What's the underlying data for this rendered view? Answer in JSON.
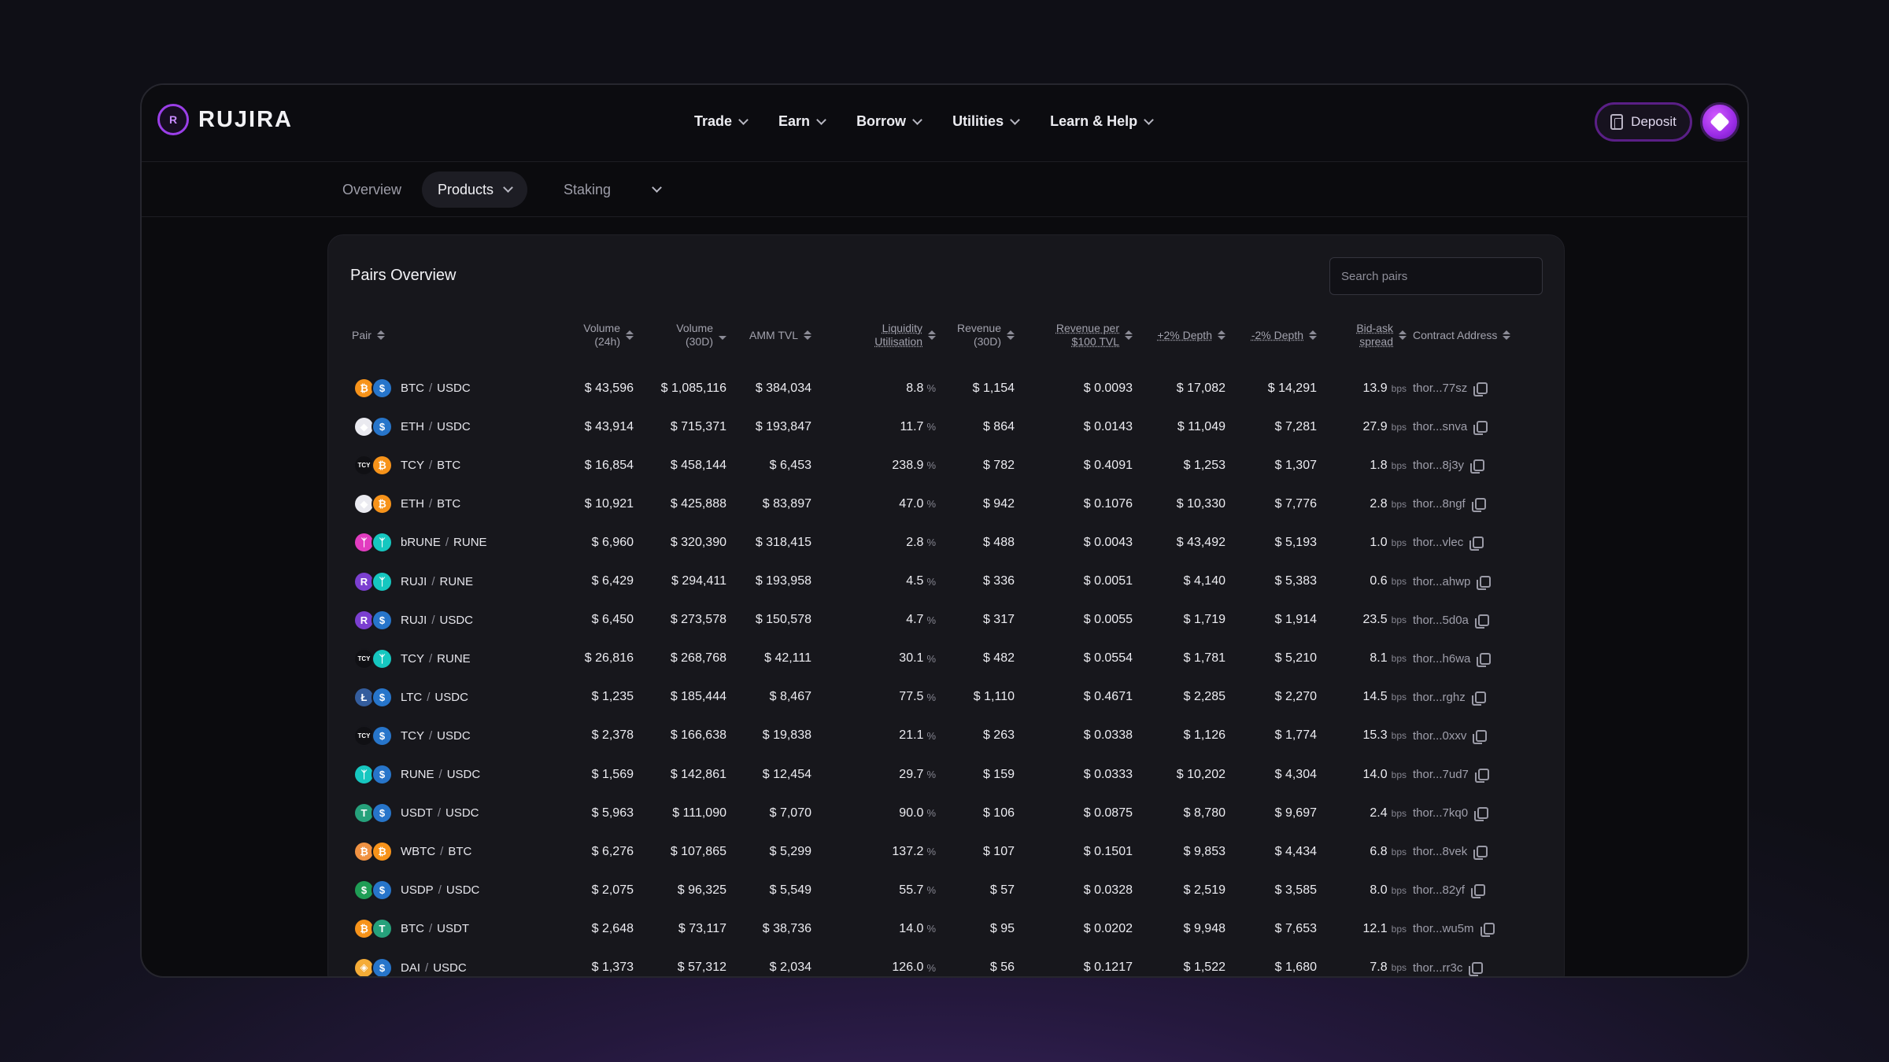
{
  "brand": {
    "name": "RUJIRA",
    "mark": "R"
  },
  "nav": [
    {
      "label": "Trade"
    },
    {
      "label": "Earn"
    },
    {
      "label": "Borrow"
    },
    {
      "label": "Utilities"
    },
    {
      "label": "Learn & Help"
    }
  ],
  "actions": {
    "deposit_label": "Deposit"
  },
  "subnav": {
    "overview": "Overview",
    "products": "Products",
    "staking": "Staking"
  },
  "panel": {
    "title": "Pairs Overview",
    "search_placeholder": "Search pairs"
  },
  "columns": {
    "pair": "Pair",
    "volume_24h": "Volume (24h)",
    "volume_30d": "Volume (30D)",
    "amm_tvl": "AMM TVL",
    "liquidity": "Liquidity Utilisation",
    "revenue": "Revenue (30D)",
    "revenue_per_100": "Revenue per $100 TVL",
    "depth_plus": "+2% Depth",
    "depth_minus": "-2% Depth",
    "spread": "Bid-ask spread",
    "contract": "Contract Address"
  },
  "units": {
    "pct": "%",
    "bps": "bps"
  },
  "coin_styles": {
    "BTC": {
      "color": "#f7931a",
      "glyph": "₿"
    },
    "USDC": {
      "color": "#2775ca",
      "glyph": "$"
    },
    "ETH": {
      "color": "#eaeaf0",
      "glyph": "◆"
    },
    "TCY": {
      "color": "#101014",
      "glyph": "TCY"
    },
    "bRUNE": {
      "color": "#e23cc0",
      "glyph": "ᛉ"
    },
    "RUNE": {
      "color": "#16c7c0",
      "glyph": "ᛉ"
    },
    "RUJI": {
      "color": "#7b3fd0",
      "glyph": "R"
    },
    "LTC": {
      "color": "#345d9d",
      "glyph": "Ł"
    },
    "USDT": {
      "color": "#26a17b",
      "glyph": "T"
    },
    "WBTC": {
      "color": "#f09242",
      "glyph": "₿"
    },
    "USDP": {
      "color": "#1f9d55",
      "glyph": "$"
    },
    "DAI": {
      "color": "#f5ac37",
      "glyph": "◈"
    }
  },
  "rows": [
    {
      "base": "BTC",
      "quote": "USDC",
      "vol24": "$ 43,596",
      "vol30": "$ 1,085,116",
      "tvl": "$ 384,034",
      "util": "8.8",
      "rev": "$ 1,154",
      "rev100": "$ 0.0093",
      "dplus": "$ 17,082",
      "dminus": "$ 14,291",
      "spread": "13.9",
      "addr": "thor...77sz"
    },
    {
      "base": "ETH",
      "quote": "USDC",
      "vol24": "$ 43,914",
      "vol30": "$ 715,371",
      "tvl": "$ 193,847",
      "util": "11.7",
      "rev": "$ 864",
      "rev100": "$ 0.0143",
      "dplus": "$ 11,049",
      "dminus": "$ 7,281",
      "spread": "27.9",
      "addr": "thor...snva"
    },
    {
      "base": "TCY",
      "quote": "BTC",
      "vol24": "$ 16,854",
      "vol30": "$ 458,144",
      "tvl": "$ 6,453",
      "util": "238.9",
      "rev": "$ 782",
      "rev100": "$ 0.4091",
      "dplus": "$ 1,253",
      "dminus": "$ 1,307",
      "spread": "1.8",
      "addr": "thor...8j3y"
    },
    {
      "base": "ETH",
      "quote": "BTC",
      "vol24": "$ 10,921",
      "vol30": "$ 425,888",
      "tvl": "$ 83,897",
      "util": "47.0",
      "rev": "$ 942",
      "rev100": "$ 0.1076",
      "dplus": "$ 10,330",
      "dminus": "$ 7,776",
      "spread": "2.8",
      "addr": "thor...8ngf"
    },
    {
      "base": "bRUNE",
      "quote": "RUNE",
      "vol24": "$ 6,960",
      "vol30": "$ 320,390",
      "tvl": "$ 318,415",
      "util": "2.8",
      "rev": "$ 488",
      "rev100": "$ 0.0043",
      "dplus": "$ 43,492",
      "dminus": "$ 5,193",
      "spread": "1.0",
      "addr": "thor...vlec"
    },
    {
      "base": "RUJI",
      "quote": "RUNE",
      "vol24": "$ 6,429",
      "vol30": "$ 294,411",
      "tvl": "$ 193,958",
      "util": "4.5",
      "rev": "$ 336",
      "rev100": "$ 0.0051",
      "dplus": "$ 4,140",
      "dminus": "$ 5,383",
      "spread": "0.6",
      "addr": "thor...ahwp"
    },
    {
      "base": "RUJI",
      "quote": "USDC",
      "vol24": "$ 6,450",
      "vol30": "$ 273,578",
      "tvl": "$ 150,578",
      "util": "4.7",
      "rev": "$ 317",
      "rev100": "$ 0.0055",
      "dplus": "$ 1,719",
      "dminus": "$ 1,914",
      "spread": "23.5",
      "addr": "thor...5d0a"
    },
    {
      "base": "TCY",
      "quote": "RUNE",
      "vol24": "$ 26,816",
      "vol30": "$ 268,768",
      "tvl": "$ 42,111",
      "util": "30.1",
      "rev": "$ 482",
      "rev100": "$ 0.0554",
      "dplus": "$ 1,781",
      "dminus": "$ 5,210",
      "spread": "8.1",
      "addr": "thor...h6wa"
    },
    {
      "base": "LTC",
      "quote": "USDC",
      "vol24": "$ 1,235",
      "vol30": "$ 185,444",
      "tvl": "$ 8,467",
      "util": "77.5",
      "rev": "$ 1,110",
      "rev100": "$ 0.4671",
      "dplus": "$ 2,285",
      "dminus": "$ 2,270",
      "spread": "14.5",
      "addr": "thor...rghz"
    },
    {
      "base": "TCY",
      "quote": "USDC",
      "vol24": "$ 2,378",
      "vol30": "$ 166,638",
      "tvl": "$ 19,838",
      "util": "21.1",
      "rev": "$ 263",
      "rev100": "$ 0.0338",
      "dplus": "$ 1,126",
      "dminus": "$ 1,774",
      "spread": "15.3",
      "addr": "thor...0xxv"
    },
    {
      "base": "RUNE",
      "quote": "USDC",
      "vol24": "$ 1,569",
      "vol30": "$ 142,861",
      "tvl": "$ 12,454",
      "util": "29.7",
      "rev": "$ 159",
      "rev100": "$ 0.0333",
      "dplus": "$ 10,202",
      "dminus": "$ 4,304",
      "spread": "14.0",
      "addr": "thor...7ud7"
    },
    {
      "base": "USDT",
      "quote": "USDC",
      "vol24": "$ 5,963",
      "vol30": "$ 111,090",
      "tvl": "$ 7,070",
      "util": "90.0",
      "rev": "$ 106",
      "rev100": "$ 0.0875",
      "dplus": "$ 8,780",
      "dminus": "$ 9,697",
      "spread": "2.4",
      "addr": "thor...7kq0"
    },
    {
      "base": "WBTC",
      "quote": "BTC",
      "vol24": "$ 6,276",
      "vol30": "$ 107,865",
      "tvl": "$ 5,299",
      "util": "137.2",
      "rev": "$ 107",
      "rev100": "$ 0.1501",
      "dplus": "$ 9,853",
      "dminus": "$ 4,434",
      "spread": "6.8",
      "addr": "thor...8vek"
    },
    {
      "base": "USDP",
      "quote": "USDC",
      "vol24": "$ 2,075",
      "vol30": "$ 96,325",
      "tvl": "$ 5,549",
      "util": "55.7",
      "rev": "$ 57",
      "rev100": "$ 0.0328",
      "dplus": "$ 2,519",
      "dminus": "$ 3,585",
      "spread": "8.0",
      "addr": "thor...82yf"
    },
    {
      "base": "BTC",
      "quote": "USDT",
      "vol24": "$ 2,648",
      "vol30": "$ 73,117",
      "tvl": "$ 38,736",
      "util": "14.0",
      "rev": "$ 95",
      "rev100": "$ 0.0202",
      "dplus": "$ 9,948",
      "dminus": "$ 7,653",
      "spread": "12.1",
      "addr": "thor...wu5m"
    },
    {
      "base": "DAI",
      "quote": "USDC",
      "vol24": "$ 1,373",
      "vol30": "$ 57,312",
      "tvl": "$ 2,034",
      "util": "126.0",
      "rev": "$ 56",
      "rev100": "$ 0.1217",
      "dplus": "$ 1,522",
      "dminus": "$ 1,680",
      "spread": "7.8",
      "addr": "thor...rr3c"
    }
  ]
}
